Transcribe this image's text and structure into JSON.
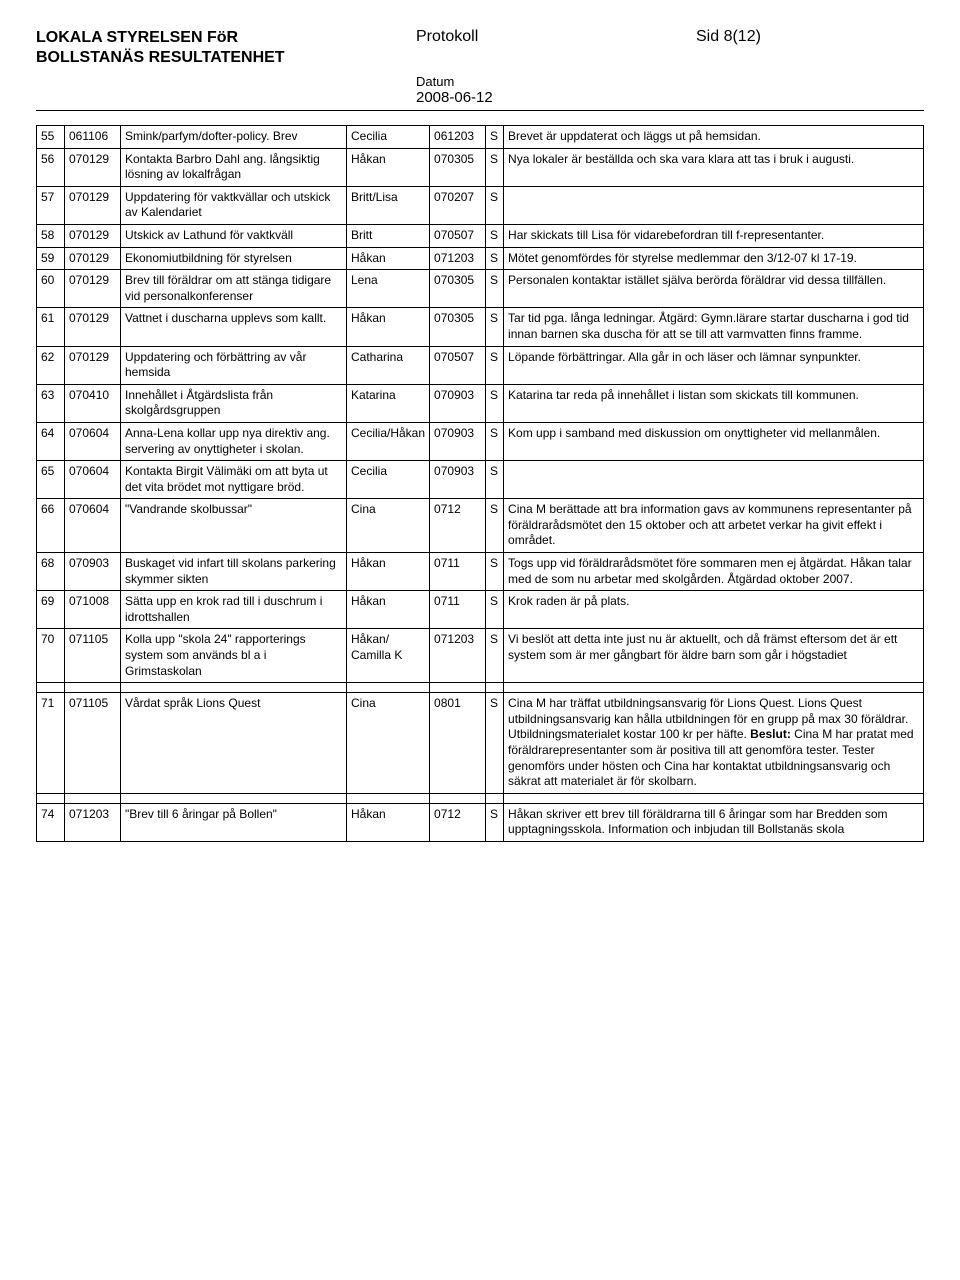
{
  "header": {
    "org_line1": "LOKALA STYRELSEN FöR",
    "org_line2": "BOLLSTANÄS RESULTATENHET",
    "protokoll": "Protokoll",
    "page": "Sid 8(12)",
    "datum_label": "Datum",
    "date": "2008-06-12"
  },
  "table": {
    "font_size": 12,
    "border_color": "#000000"
  },
  "rows": [
    {
      "n": "55",
      "d": "061106",
      "desc": "Smink/parfym/dofter-policy. Brev",
      "resp": "Cecilia",
      "d2": "061203",
      "s": "S",
      "c": "Brevet är uppdaterat och läggs ut på hemsidan."
    },
    {
      "n": "56",
      "d": "070129",
      "desc": "Kontakta Barbro Dahl ang. långsiktig lösning av lokalfrågan",
      "resp": "Håkan",
      "d2": "070305",
      "s": "S",
      "c": "Nya lokaler är beställda och ska vara klara att tas i bruk i augusti."
    },
    {
      "n": "57",
      "d": "070129",
      "desc": "Uppdatering för vaktkvällar och utskick av Kalendariet",
      "resp": "Britt/Lisa",
      "d2": "070207",
      "s": "S",
      "c": ""
    },
    {
      "n": "58",
      "d": "070129",
      "desc": "Utskick av Lathund för vaktkväll",
      "resp": "Britt",
      "d2": "070507",
      "s": "S",
      "c": "Har skickats till Lisa för vidarebefordran till f-representanter."
    },
    {
      "n": "59",
      "d": "070129",
      "desc": "Ekonomiutbildning för styrelsen",
      "resp": "Håkan",
      "d2": "071203",
      "s": "S",
      "c": "Mötet genomfördes för styrelse medlemmar den 3/12-07 kl 17-19."
    },
    {
      "n": "60",
      "d": "070129",
      "desc": "Brev till föräldrar om att stänga tidigare vid personalkonferenser",
      "resp": "Lena",
      "d2": "070305",
      "s": "S",
      "c": "Personalen kontaktar istället själva berörda föräldrar vid dessa tillfällen."
    },
    {
      "n": "61",
      "d": "070129",
      "desc": "Vattnet i duscharna upplevs som kallt.",
      "resp": "Håkan",
      "d2": "070305",
      "s": "S",
      "c": "Tar tid pga. långa ledningar. Åtgärd: Gymn.lärare startar duscharna i god tid innan barnen ska duscha för att se till att varmvatten finns framme."
    },
    {
      "n": "62",
      "d": "070129",
      "desc": "Uppdatering och förbättring av vår hemsida",
      "resp": "Catharina",
      "d2": "070507",
      "s": "S",
      "c": "Löpande förbättringar. Alla går in och läser och lämnar synpunkter."
    },
    {
      "n": "63",
      "d": "070410",
      "desc": "Innehållet i Åtgärdslista från skolgårdsgruppen",
      "resp": "Katarina",
      "d2": "070903",
      "s": "S",
      "c": "Katarina tar reda på innehållet i listan som skickats till kommunen."
    },
    {
      "n": "64",
      "d": "070604",
      "desc": "Anna-Lena kollar upp nya direktiv ang. servering av onyttigheter i skolan.",
      "resp": "Cecilia/Håkan",
      "d2": "070903",
      "s": "S",
      "c": "Kom upp i samband med diskussion om onyttigheter vid mellanmålen."
    },
    {
      "n": "65",
      "d": "070604",
      "desc": "Kontakta Birgit Välimäki om att byta ut det vita brödet mot nyttigare bröd.",
      "resp": "Cecilia",
      "d2": "070903",
      "s": "S",
      "c": ""
    },
    {
      "n": "66",
      "d": "070604",
      "desc": "\"Vandrande skolbussar\"",
      "resp": "Cina",
      "d2": "0712",
      "s": "S",
      "c": "Cina M berättade att bra information gavs av kommunens representanter på föräldrarådsmötet den 15 oktober och att arbetet verkar ha givit effekt i området."
    },
    {
      "n": "68",
      "d": "070903",
      "desc": "Buskaget vid infart till skolans parkering skymmer sikten",
      "resp": "Håkan",
      "d2": "0711",
      "s": "S",
      "c": "Togs upp vid föräldrarådsmötet före sommaren men ej åtgärdat. Håkan talar med de som nu arbetar med skolgården. Åtgärdad oktober 2007."
    },
    {
      "n": "69",
      "d": "071008",
      "desc": "Sätta upp en krok rad till i duschrum i idrottshallen",
      "resp": "Håkan",
      "d2": "0711",
      "s": "S",
      "c": "Krok raden är på plats."
    },
    {
      "n": "70",
      "d": "071105",
      "desc": "Kolla upp \"skola 24\" rapporterings system som används bl a i Grimstaskolan",
      "resp": "Håkan/ Camilla K",
      "d2": "071203",
      "s": "S",
      "c": "Vi beslöt att detta inte just nu är aktuellt, och då främst eftersom det är ett system som är mer gångbart för äldre barn som går i högstadiet"
    },
    {
      "n": "71",
      "d": "071105",
      "desc": "Vårdat språk Lions Quest",
      "resp": "Cina",
      "d2": "0801",
      "s": "S",
      "c": "Cina M har träffat utbildningsansvarig för Lions Quest. Lions Quest utbildningsansvarig kan hålla utbildningen för en grupp på max 30 föräldrar. Utbildningsmaterialet kostar 100 kr per häfte. <b>Beslut:</b> Cina M har pratat med föräldrarepresentanter som är positiva till att genomföra tester. Tester genomförs under hösten och Cina har kontaktat utbildningsansvarig och säkrat att materialet är för skolbarn."
    },
    {
      "n": "74",
      "d": "071203",
      "desc": "\"Brev till 6 åringar på Bollen\"",
      "resp": "Håkan",
      "d2": "0712",
      "s": "S",
      "c": "Håkan skriver ett brev till föräldrarna till 6 åringar som har Bredden som upptagningsskola. Information och inbjudan till Bollstanäs skola"
    }
  ],
  "spacer_after": [
    "70",
    "71"
  ]
}
